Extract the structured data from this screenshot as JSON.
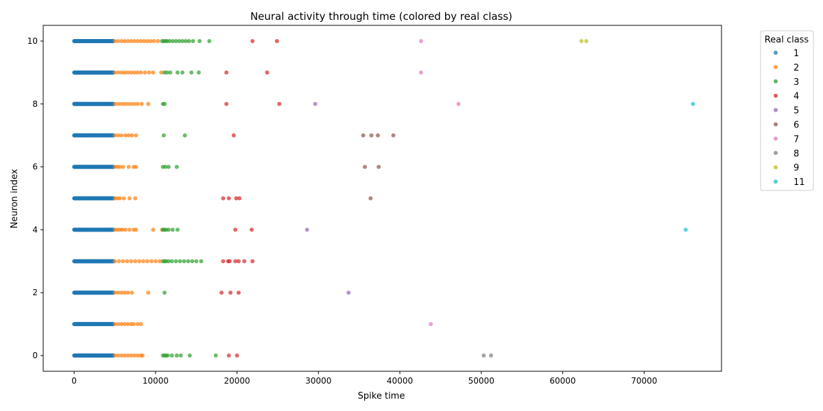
{
  "chart_data": {
    "type": "scatter",
    "title": "Neural activity through time (colored by real class)",
    "xlabel": "Spike time",
    "ylabel": "Neuron index",
    "xlim": [
      -3800,
      79500
    ],
    "ylim": [
      -0.5,
      10.5
    ],
    "xticks": [
      0,
      10000,
      20000,
      30000,
      40000,
      50000,
      60000,
      70000
    ],
    "yticks": [
      0,
      2,
      4,
      6,
      8,
      10
    ],
    "grid": false,
    "legend": {
      "title": "Real class",
      "placement": "outside-top-right",
      "entries": [
        "1",
        "2",
        "3",
        "4",
        "5",
        "6",
        "7",
        "8",
        "9",
        "11"
      ]
    },
    "colors": {
      "1": "#1f77b4",
      "2": "#ff7f0e",
      "3": "#2ca02c",
      "4": "#d62728",
      "5": "#9467bd",
      "6": "#8c564b",
      "7": "#e377c2",
      "8": "#7f7f7f",
      "9": "#bcbd22",
      "11": "#17becf"
    },
    "series": [
      {
        "name": "1",
        "dense": [
          {
            "y": 0,
            "x_from": 0,
            "x_to": 4800
          },
          {
            "y": 1,
            "x_from": 0,
            "x_to": 4800
          },
          {
            "y": 2,
            "x_from": 0,
            "x_to": 4800
          },
          {
            "y": 3,
            "x_from": 0,
            "x_to": 4800
          },
          {
            "y": 4,
            "x_from": 0,
            "x_to": 4800
          },
          {
            "y": 5,
            "x_from": 0,
            "x_to": 4800
          },
          {
            "y": 6,
            "x_from": 0,
            "x_to": 4800
          },
          {
            "y": 7,
            "x_from": 0,
            "x_to": 4800
          },
          {
            "y": 8,
            "x_from": 0,
            "x_to": 4800
          },
          {
            "y": 9,
            "x_from": 0,
            "x_to": 4800
          },
          {
            "y": 10,
            "x_from": 0,
            "x_to": 4800
          }
        ]
      },
      {
        "name": "2",
        "points": [
          [
            5000,
            0
          ],
          [
            5400,
            0
          ],
          [
            5800,
            0
          ],
          [
            6200,
            0
          ],
          [
            6600,
            0
          ],
          [
            7000,
            0
          ],
          [
            7400,
            0
          ],
          [
            7800,
            0
          ],
          [
            8200,
            0
          ],
          [
            8400,
            0
          ],
          [
            5000,
            1
          ],
          [
            5400,
            1
          ],
          [
            5800,
            1
          ],
          [
            6200,
            1
          ],
          [
            6600,
            1
          ],
          [
            7000,
            1
          ],
          [
            7300,
            1
          ],
          [
            7800,
            1
          ],
          [
            8200,
            1
          ],
          [
            5000,
            2
          ],
          [
            5400,
            2
          ],
          [
            5800,
            2
          ],
          [
            6200,
            2
          ],
          [
            6600,
            2
          ],
          [
            7100,
            2
          ],
          [
            9100,
            2
          ],
          [
            5000,
            3
          ],
          [
            5500,
            3
          ],
          [
            6000,
            3
          ],
          [
            6500,
            3
          ],
          [
            7000,
            3
          ],
          [
            7500,
            3
          ],
          [
            8000,
            3
          ],
          [
            8500,
            3
          ],
          [
            9000,
            3
          ],
          [
            9500,
            3
          ],
          [
            10000,
            3
          ],
          [
            10500,
            3
          ],
          [
            5000,
            4
          ],
          [
            5300,
            4
          ],
          [
            5600,
            4
          ],
          [
            5900,
            4
          ],
          [
            6300,
            4
          ],
          [
            6800,
            4
          ],
          [
            7300,
            4
          ],
          [
            7600,
            4
          ],
          [
            9700,
            4
          ],
          [
            10800,
            4
          ],
          [
            5000,
            5
          ],
          [
            5300,
            5
          ],
          [
            5600,
            5
          ],
          [
            6100,
            5
          ],
          [
            6800,
            5
          ],
          [
            7500,
            5
          ],
          [
            5000,
            6
          ],
          [
            5300,
            6
          ],
          [
            5600,
            6
          ],
          [
            6000,
            6
          ],
          [
            6700,
            6
          ],
          [
            7300,
            6
          ],
          [
            7600,
            6
          ],
          [
            5000,
            7
          ],
          [
            5400,
            7
          ],
          [
            5800,
            7
          ],
          [
            6300,
            7
          ],
          [
            6700,
            7
          ],
          [
            7100,
            7
          ],
          [
            7600,
            7
          ],
          [
            5000,
            8
          ],
          [
            5400,
            8
          ],
          [
            5800,
            8
          ],
          [
            6200,
            8
          ],
          [
            6600,
            8
          ],
          [
            7000,
            8
          ],
          [
            7400,
            8
          ],
          [
            7800,
            8
          ],
          [
            8300,
            8
          ],
          [
            9100,
            8
          ],
          [
            5000,
            9
          ],
          [
            5400,
            9
          ],
          [
            5800,
            9
          ],
          [
            6200,
            9
          ],
          [
            6600,
            9
          ],
          [
            7000,
            9
          ],
          [
            7400,
            9
          ],
          [
            7800,
            9
          ],
          [
            8200,
            9
          ],
          [
            8700,
            9
          ],
          [
            9200,
            9
          ],
          [
            9700,
            9
          ],
          [
            10700,
            9
          ],
          [
            5000,
            10
          ],
          [
            5400,
            10
          ],
          [
            5800,
            10
          ],
          [
            6200,
            10
          ],
          [
            6600,
            10
          ],
          [
            7000,
            10
          ],
          [
            7400,
            10
          ],
          [
            7800,
            10
          ],
          [
            8200,
            10
          ],
          [
            8600,
            10
          ],
          [
            9000,
            10
          ],
          [
            9400,
            10
          ],
          [
            9800,
            10
          ],
          [
            10300,
            10
          ]
        ]
      },
      {
        "name": "3",
        "points": [
          [
            10900,
            0
          ],
          [
            11100,
            0
          ],
          [
            11300,
            0
          ],
          [
            11500,
            0
          ],
          [
            12000,
            0
          ],
          [
            12600,
            0
          ],
          [
            13100,
            0
          ],
          [
            14200,
            0
          ],
          [
            17400,
            0
          ],
          [
            11100,
            2
          ],
          [
            10900,
            3
          ],
          [
            11100,
            3
          ],
          [
            11300,
            3
          ],
          [
            11600,
            3
          ],
          [
            12000,
            3
          ],
          [
            12500,
            3
          ],
          [
            13000,
            3
          ],
          [
            13500,
            3
          ],
          [
            14000,
            3
          ],
          [
            14500,
            3
          ],
          [
            15000,
            3
          ],
          [
            15600,
            3
          ],
          [
            10900,
            4
          ],
          [
            11100,
            4
          ],
          [
            11300,
            4
          ],
          [
            11600,
            4
          ],
          [
            12100,
            4
          ],
          [
            12700,
            4
          ],
          [
            10900,
            6
          ],
          [
            11200,
            6
          ],
          [
            11600,
            6
          ],
          [
            12600,
            6
          ],
          [
            11000,
            7
          ],
          [
            13600,
            7
          ],
          [
            10900,
            8
          ],
          [
            11100,
            8
          ],
          [
            11100,
            9
          ],
          [
            11400,
            9
          ],
          [
            11800,
            9
          ],
          [
            12700,
            9
          ],
          [
            13300,
            9
          ],
          [
            14400,
            9
          ],
          [
            15300,
            9
          ],
          [
            10800,
            10
          ],
          [
            11000,
            10
          ],
          [
            11200,
            10
          ],
          [
            11400,
            10
          ],
          [
            11700,
            10
          ],
          [
            12100,
            10
          ],
          [
            12500,
            10
          ],
          [
            12900,
            10
          ],
          [
            13300,
            10
          ],
          [
            13700,
            10
          ],
          [
            14100,
            10
          ],
          [
            14600,
            10
          ],
          [
            15400,
            10
          ],
          [
            16600,
            10
          ]
        ]
      },
      {
        "name": "4",
        "points": [
          [
            19000,
            0
          ],
          [
            20000,
            0
          ],
          [
            18100,
            2
          ],
          [
            19200,
            2
          ],
          [
            20200,
            2
          ],
          [
            18300,
            3
          ],
          [
            18900,
            3
          ],
          [
            19100,
            3
          ],
          [
            19800,
            3
          ],
          [
            20200,
            3
          ],
          [
            20900,
            3
          ],
          [
            21900,
            3
          ],
          [
            19800,
            4
          ],
          [
            21800,
            4
          ],
          [
            18300,
            5
          ],
          [
            19000,
            5
          ],
          [
            19900,
            5
          ],
          [
            20300,
            5
          ],
          [
            19600,
            7
          ],
          [
            18700,
            8
          ],
          [
            25200,
            8
          ],
          [
            18700,
            9
          ],
          [
            23700,
            9
          ],
          [
            21900,
            10
          ],
          [
            24900,
            10
          ]
        ]
      },
      {
        "name": "5",
        "points": [
          [
            33700,
            2
          ],
          [
            28600,
            4
          ],
          [
            29600,
            8
          ]
        ]
      },
      {
        "name": "6",
        "points": [
          [
            36400,
            5
          ],
          [
            35700,
            6
          ],
          [
            37400,
            6
          ],
          [
            35500,
            7
          ],
          [
            36500,
            7
          ],
          [
            37300,
            7
          ],
          [
            39200,
            7
          ]
        ]
      },
      {
        "name": "7",
        "points": [
          [
            43800,
            1
          ],
          [
            47200,
            8
          ],
          [
            42600,
            9
          ],
          [
            42600,
            10
          ]
        ]
      },
      {
        "name": "8",
        "points": [
          [
            50300,
            0
          ],
          [
            51200,
            0
          ]
        ]
      },
      {
        "name": "9",
        "points": [
          [
            62300,
            10
          ],
          [
            62900,
            10
          ]
        ]
      },
      {
        "name": "11",
        "points": [
          [
            75100,
            4
          ],
          [
            76000,
            8
          ]
        ]
      }
    ]
  }
}
